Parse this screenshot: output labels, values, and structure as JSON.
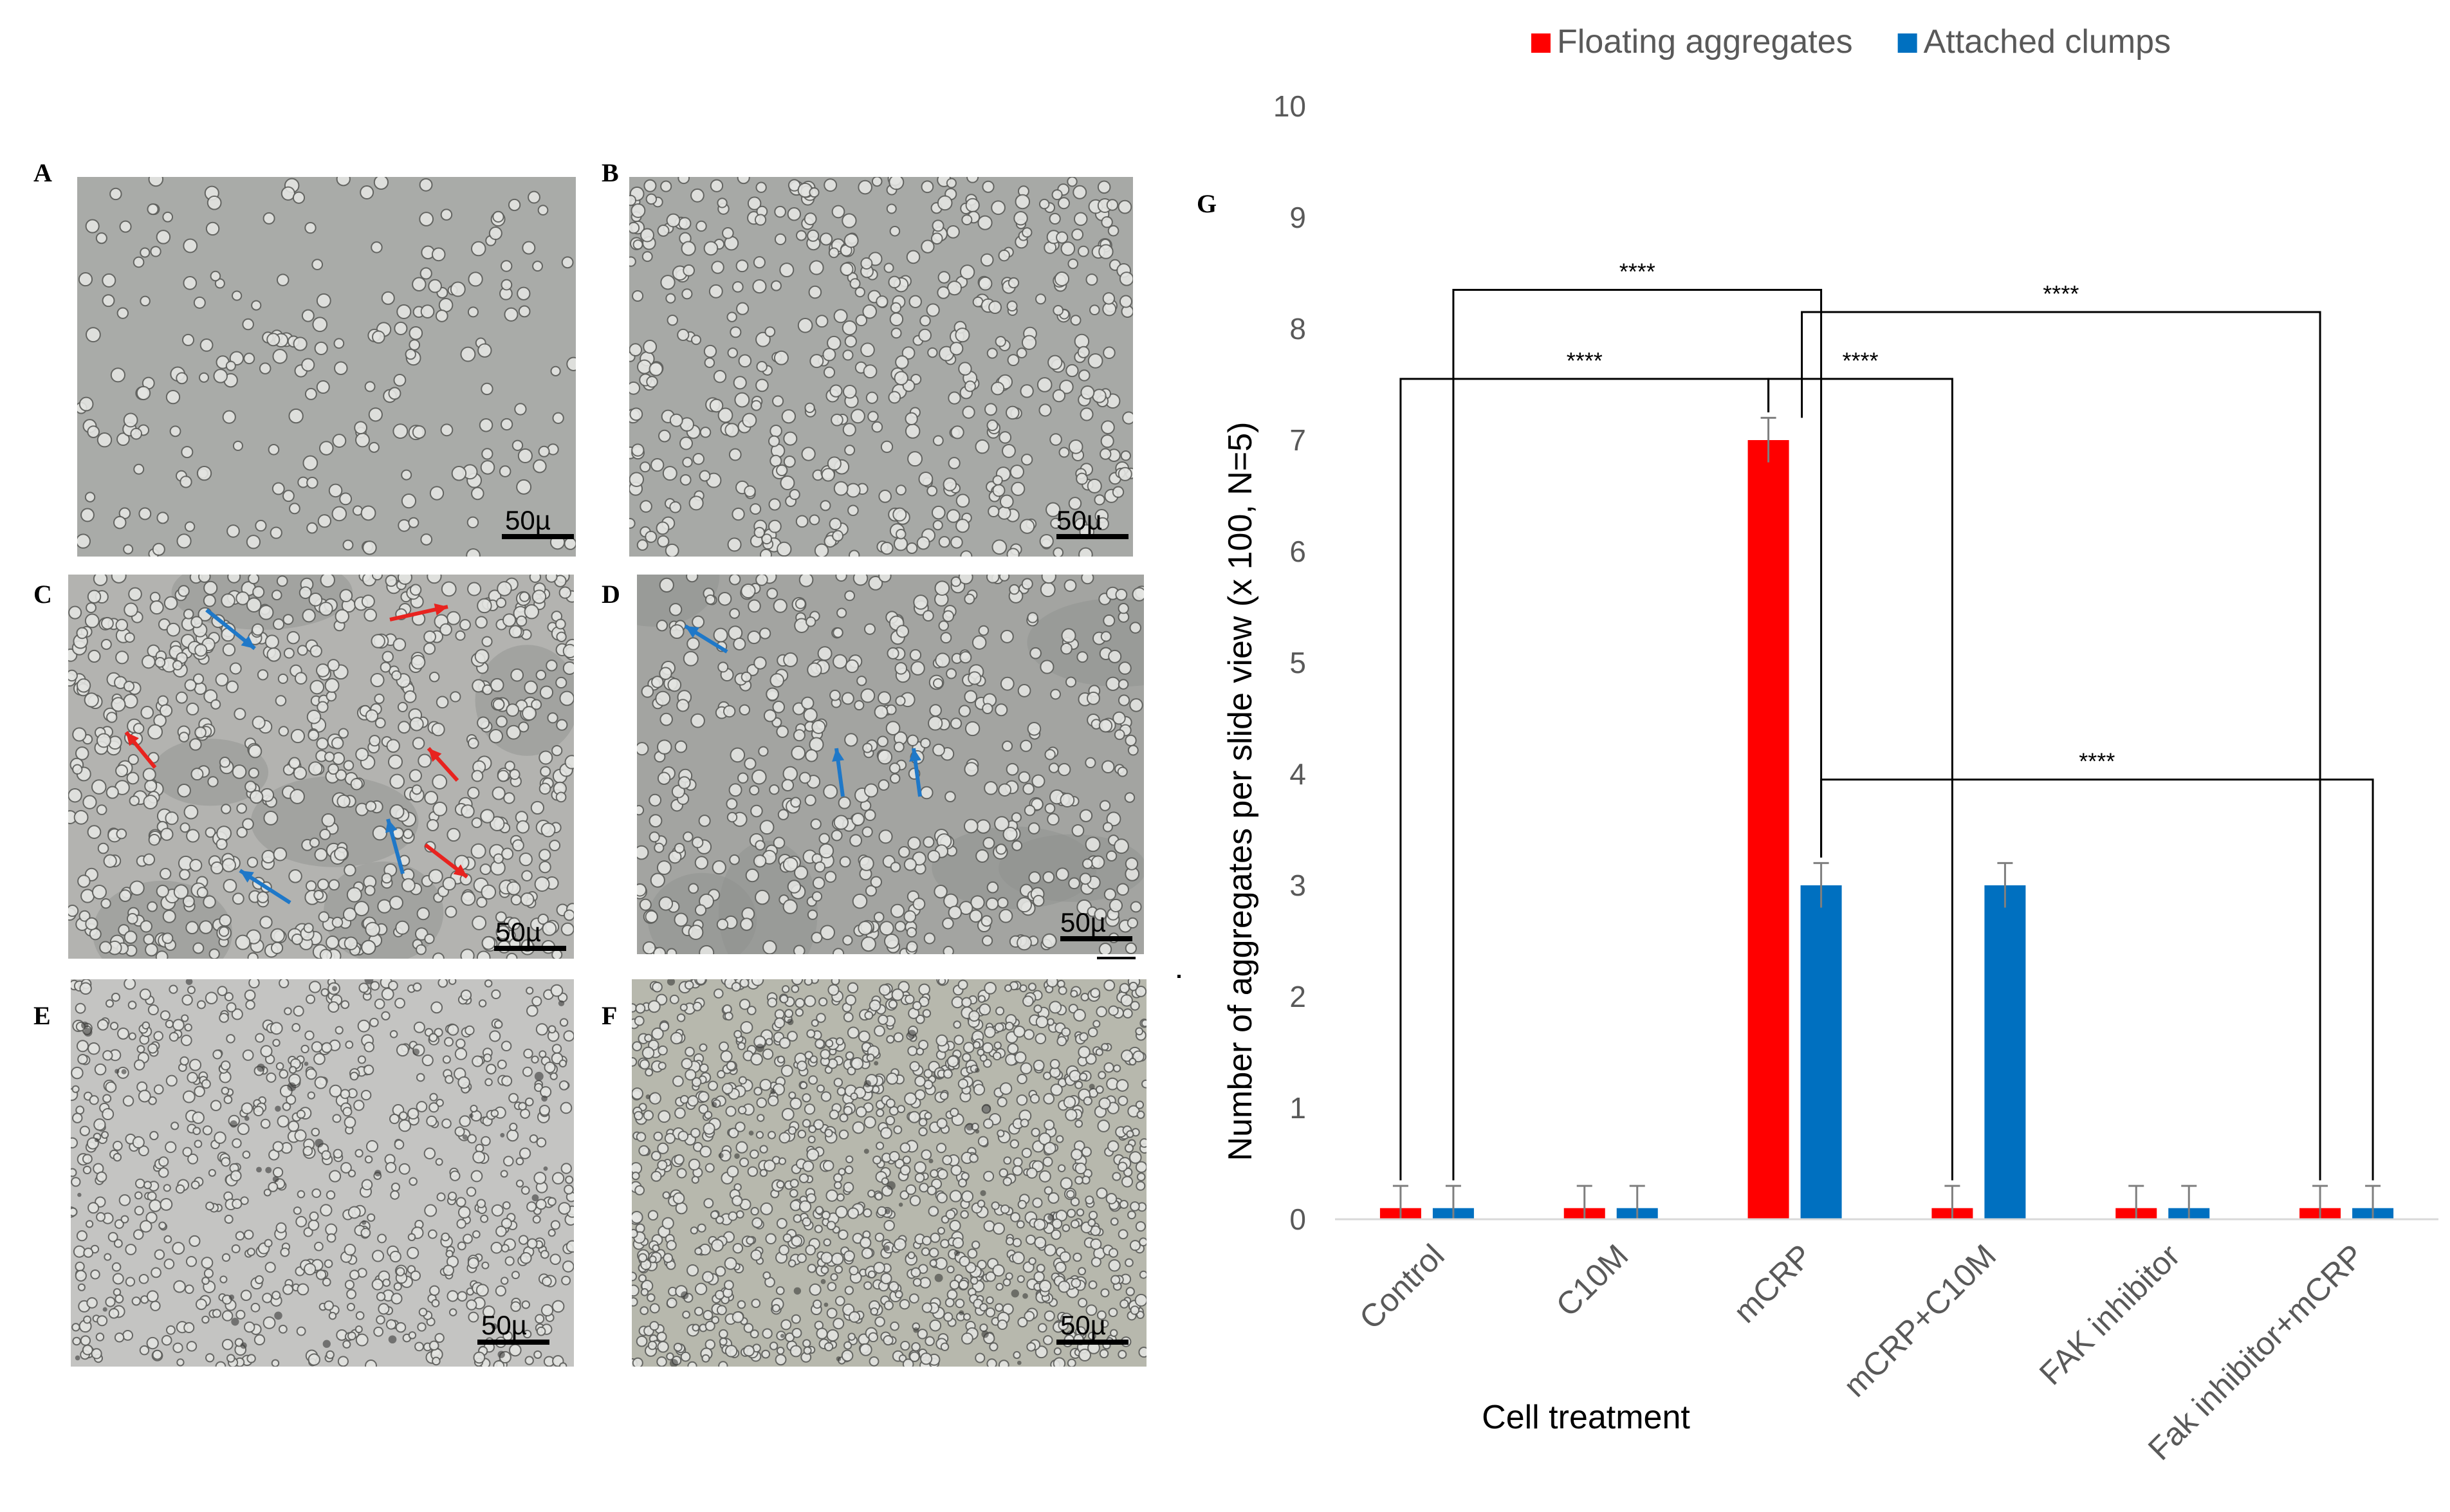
{
  "panels": [
    {
      "label": "A",
      "scale": "50µ",
      "bg": "#a9aba8",
      "density": 220,
      "cellStyle": "sparse"
    },
    {
      "label": "B",
      "scale": "50µ",
      "bg": "#a7a9a6",
      "density": 520,
      "cellStyle": "sparse"
    },
    {
      "label": "C",
      "scale": "50µ",
      "bg": "#b3b3b0",
      "density": 700,
      "cellStyle": "aggregates"
    },
    {
      "label": "D",
      "scale": "50µ",
      "bg": "#a3a4a1",
      "density": 520,
      "cellStyle": "clumps"
    },
    {
      "label": "E",
      "scale": "50µ",
      "bg": "#c4c4c2",
      "density": 800,
      "cellStyle": "dense"
    },
    {
      "label": "F",
      "scale": "50µ",
      "bg": "#b7b8ad",
      "density": 1300,
      "cellStyle": "dense"
    }
  ],
  "chart_label": "G",
  "colors": {
    "floating": "#ff0000",
    "attached": "#0070c0",
    "axis": "#d9d9d9",
    "bracket": "#000000",
    "red_arrow": "#e8231f",
    "blue_arrow": "#1f78c8"
  },
  "chart_data": {
    "type": "bar",
    "categories": [
      "Control",
      "C10M",
      "mCRP",
      "mCRP+C10M",
      "FAK inhibitor",
      "Fak inhibitor+mCRP"
    ],
    "series": [
      {
        "name": "Floating aggregates",
        "values": [
          0.1,
          0.1,
          7.0,
          0.1,
          0.1,
          0.1
        ],
        "errors": [
          0.2,
          0.2,
          0.2,
          0.2,
          0.2,
          0.2
        ]
      },
      {
        "name": "Attached clumps",
        "values": [
          0.1,
          0.1,
          3.0,
          3.0,
          0.1,
          0.1
        ],
        "errors": [
          0.2,
          0.2,
          0.2,
          0.2,
          0.2,
          0.2
        ]
      }
    ],
    "xlabel": "Cell treatment",
    "ylabel": "Number of aggregates per slide view (x 100, N=5)",
    "ylim": [
      0,
      10
    ],
    "yticks": [
      0,
      1,
      2,
      3,
      4,
      5,
      6,
      7,
      8,
      9,
      10
    ],
    "legend_position": "top",
    "grid": false,
    "significance": [
      {
        "label": "****",
        "from": [
          "Control",
          "Floating aggregates"
        ],
        "to": [
          "mCRP",
          "Floating aggregates"
        ]
      },
      {
        "label": "****",
        "from": [
          "Control",
          "Attached clumps"
        ],
        "to": [
          "mCRP",
          "Attached clumps"
        ]
      },
      {
        "label": "****",
        "from": [
          "mCRP",
          "Floating aggregates"
        ],
        "to": [
          "mCRP+C10M",
          "Floating aggregates"
        ]
      },
      {
        "label": "****",
        "from": [
          "mCRP",
          "Floating aggregates"
        ],
        "to": [
          "Fak inhibitor+mCRP",
          "Floating aggregates"
        ]
      },
      {
        "label": "****",
        "from": [
          "mCRP",
          "Attached clumps"
        ],
        "to": [
          "Fak inhibitor+mCRP",
          "Attached clumps"
        ]
      }
    ]
  }
}
